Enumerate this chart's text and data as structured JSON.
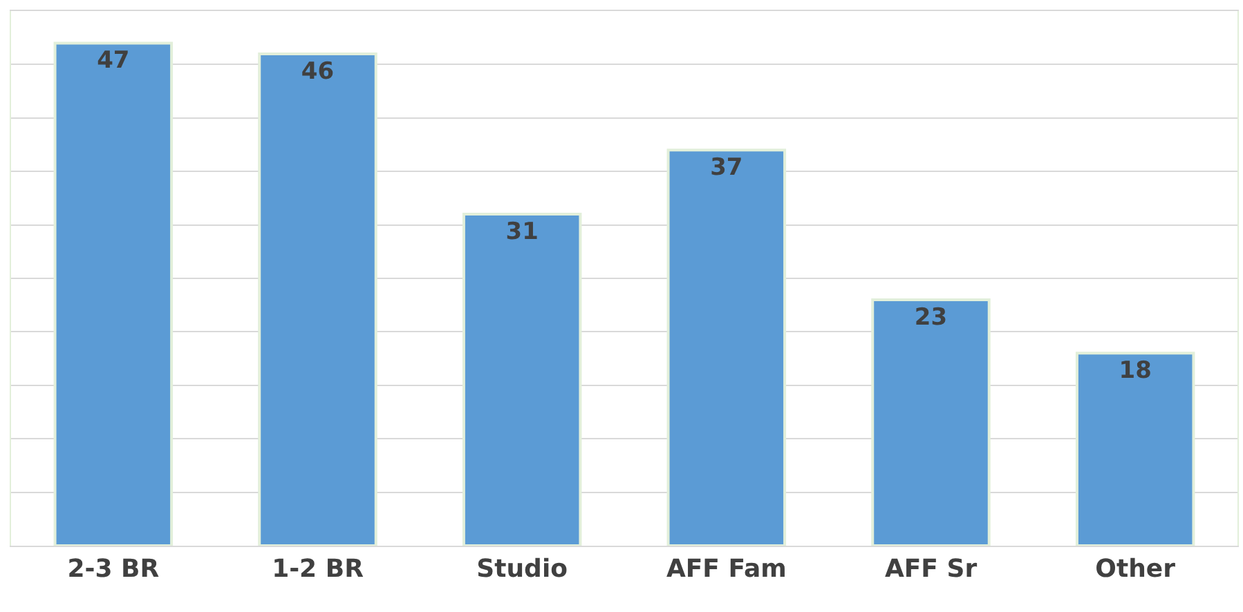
{
  "chart_data": {
    "type": "bar",
    "categories": [
      "2-3 BR",
      "1-2 BR",
      "Studio",
      "AFF Fam",
      "AFF Sr",
      "Other"
    ],
    "values": [
      47,
      46,
      31,
      37,
      23,
      18
    ],
    "color": "#5b9bd5",
    "ylim": [
      0,
      50
    ],
    "yticks": [
      {
        "value": 0,
        "label": null
      },
      {
        "value": 5,
        "label": null
      },
      {
        "value": 10,
        "label": null
      },
      {
        "value": 15,
        "label": null
      },
      {
        "value": 20,
        "label": null
      },
      {
        "value": 25,
        "label": null
      },
      {
        "value": 30,
        "label": null
      },
      {
        "value": 35,
        "label": null
      },
      {
        "value": 40,
        "label": null
      },
      {
        "value": 45,
        "label": null
      },
      {
        "value": 50,
        "label": null
      }
    ],
    "grid": "y",
    "tick_labels": "x",
    "data_labels": true
  }
}
